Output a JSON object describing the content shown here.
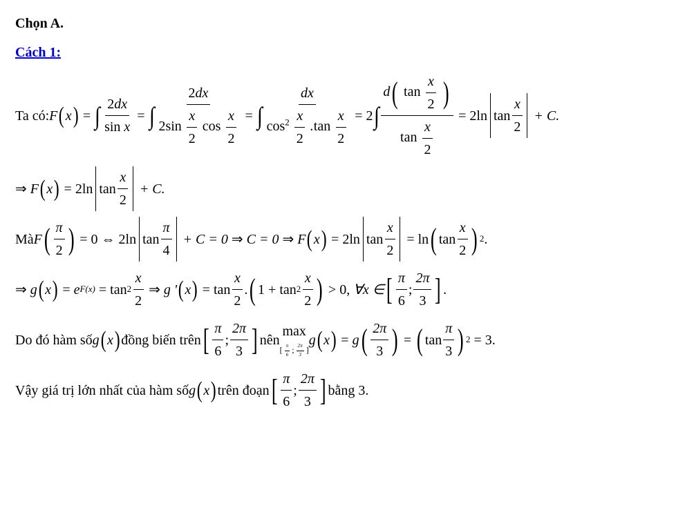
{
  "text_color": "#000000",
  "link_color": "#0000cc",
  "background": "#ffffff",
  "font_family": "Times New Roman",
  "base_font_size_pt": 15,
  "heading1": "Chọn A.",
  "heading2": "Cách 1:",
  "line1": {
    "prefix": "Ta có: ",
    "fx_label": "F",
    "var": "x",
    "eq": "=",
    "two": "2",
    "dx": "dx",
    "sin": "sin",
    "cos": "cos",
    "tan": "tan",
    "half_num": "x",
    "half_den": "2",
    "d_op": "d",
    "ln": "ln",
    "plus_c": "+ C.",
    "sq_label": "2"
  },
  "line2": {
    "arrow": "⇒",
    "F": "F",
    "x": "x",
    "eq": "=",
    "two": "2",
    "ln": "ln",
    "tan": "tan",
    "num": "x",
    "den": "2",
    "plus_c": "+ C."
  },
  "line3": {
    "prefix": "Mà ",
    "F": "F",
    "pi": "π",
    "two": "2",
    "eq0": "= 0",
    "iff": "⇔",
    "ln": "ln",
    "tan": "tan",
    "four": "4",
    "plusC": "+ C = 0",
    "arrow": "⇒",
    "c0": "C = 0",
    "arrow2": "⇒",
    "eq": "=",
    "num": "x",
    "den": "2",
    "sq": "2",
    "dot": "."
  },
  "line4": {
    "arrow": "⇒",
    "g": "g",
    "x": "x",
    "eq": "=",
    "e": "e",
    "Fx": "F(x)",
    "tan": "tan",
    "sq": "2",
    "num": "x",
    "den": "2",
    "gprime": "g '",
    "dot": ".",
    "one": "1",
    "plus": "+",
    "gt0": "> 0,",
    "forall": "∀x ∈",
    "pi": "π",
    "six": "6",
    "semi": ";",
    "twopi": "2π",
    "three": "3",
    "period": "."
  },
  "line5": {
    "prefix": "Do đó hàm số ",
    "g": "g",
    "x": "x",
    "text2": " đồng biến trên ",
    "pi": "π",
    "six": "6",
    "semi": ";",
    "twopi": "2π",
    "three": "3",
    "text3": " nên ",
    "max": "max",
    "eq": "=",
    "tan": "tan",
    "sq": "2",
    "eq3": "= 3."
  },
  "line6": {
    "prefix": "Vậy giá trị lớn nhất của hàm số ",
    "g": "g",
    "x": "x",
    "text2": " trên đoạn ",
    "pi": "π",
    "six": "6",
    "semi": ";",
    "twopi": "2π",
    "three": "3",
    "text3": " bằng 3."
  }
}
